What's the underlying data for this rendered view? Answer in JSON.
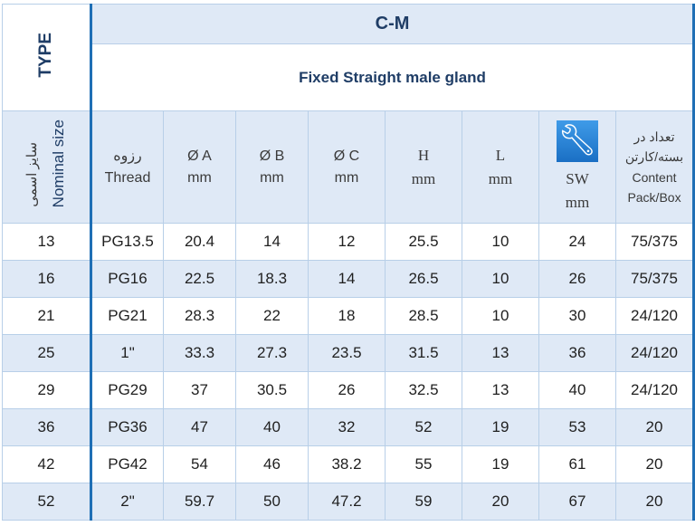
{
  "type_label": "TYPE",
  "model": "C-M",
  "description": "Fixed Straight male gland",
  "headers": {
    "nominal_fa": "سایز اسمی",
    "nominal_en": "Nominal size",
    "thread_fa": "رزوه",
    "thread_en": "Thread",
    "a": "Ø A",
    "b": "Ø B",
    "c": "Ø C",
    "h": "H",
    "l": "L",
    "sw": "SW",
    "unit": "mm",
    "content_fa1": "تعداد در",
    "content_fa2": "بسته/کارتن",
    "content_en1": "Content",
    "content_en2": "Pack/Box",
    "sw_icon": "wrench-icon"
  },
  "rows": [
    [
      "13",
      "PG13.5",
      "20.4",
      "14",
      "12",
      "25.5",
      "10",
      "24",
      "75/375"
    ],
    [
      "16",
      "PG16",
      "22.5",
      "18.3",
      "14",
      "26.5",
      "10",
      "26",
      "75/375"
    ],
    [
      "21",
      "PG21",
      "28.3",
      "22",
      "18",
      "28.5",
      "10",
      "30",
      "24/120"
    ],
    [
      "25",
      "1\"",
      "33.3",
      "27.3",
      "23.5",
      "31.5",
      "13",
      "36",
      "24/120"
    ],
    [
      "29",
      "PG29",
      "37",
      "30.5",
      "26",
      "32.5",
      "13",
      "40",
      "24/120"
    ],
    [
      "36",
      "PG36",
      "47",
      "40",
      "32",
      "52",
      "19",
      "53",
      "20"
    ],
    [
      "42",
      "PG42",
      "54",
      "46",
      "38.2",
      "55",
      "19",
      "61",
      "20"
    ],
    [
      "52",
      "2\"",
      "59.7",
      "50",
      "47.2",
      "59",
      "20",
      "67",
      "20"
    ]
  ]
}
